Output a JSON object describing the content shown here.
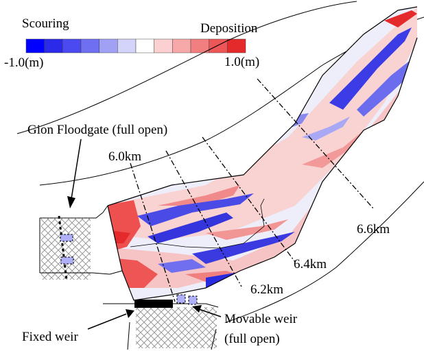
{
  "legend": {
    "left_title": "Scouring",
    "right_title": "Deposition",
    "min_label": "-1.0(m)",
    "max_label": "1.0(m)",
    "colors": [
      "#0000ff",
      "#2a2ae8",
      "#4a4af0",
      "#6f6ff2",
      "#a0a0f4",
      "#d4d4fa",
      "#ffffff",
      "#fcd0d0",
      "#f7a8a8",
      "#f27f7f",
      "#ec5656",
      "#e42a2a"
    ]
  },
  "labels": {
    "gion_floodgate": "Gion Floodgate (full open)",
    "km_6_0": "6.0km",
    "km_6_2": "6.2km",
    "km_6_4": "6.4km",
    "km_6_6": "6.6km",
    "fixed_weir": "Fixed weir",
    "movable_weir_line1": "Movable weir",
    "movable_weir_line2": "(full open)"
  },
  "palette": {
    "deposition_red": "#ee5050",
    "deposition_light": "#f9c9c9",
    "scour_blue": "#3c3ce0",
    "scour_light": "#c9c9f5",
    "neutral": "#eeeefa"
  }
}
